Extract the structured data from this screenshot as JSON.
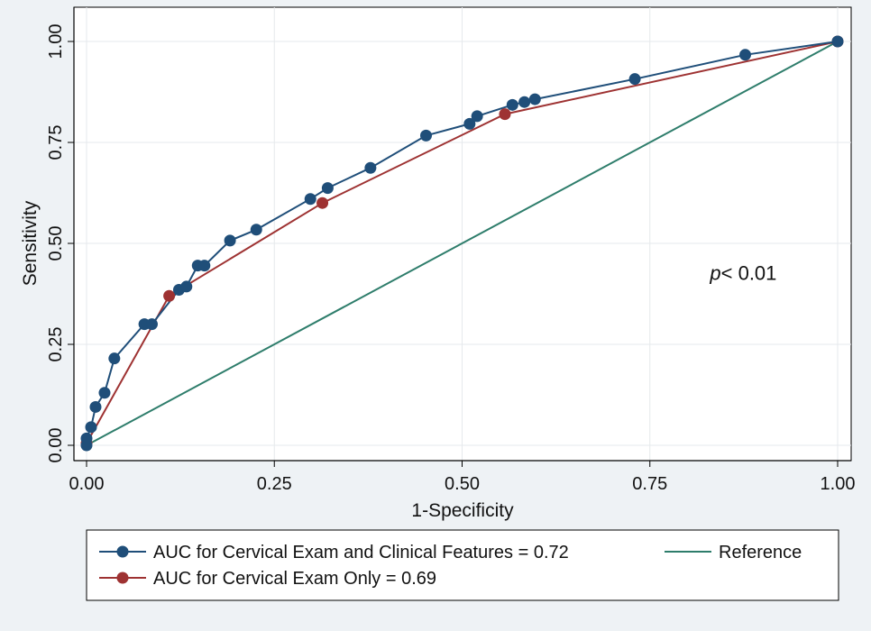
{
  "chart_data": {
    "type": "line",
    "xlabel": "1-Specificity",
    "ylabel": "Sensitivity",
    "xlim": [
      0,
      1
    ],
    "ylim": [
      0,
      1
    ],
    "xticks": [
      "0.00",
      "0.25",
      "0.50",
      "0.75",
      "1.00"
    ],
    "yticks": [
      "0.00",
      "0.25",
      "0.50",
      "0.75",
      "1.00"
    ],
    "grid": true,
    "legend_position": "bottom",
    "annotation": {
      "italic": "p",
      "text": "< 0.01",
      "x": 0.83,
      "y": 0.41
    },
    "series": [
      {
        "name": "AUC for Cervical Exam and Clinical Features = 0.72",
        "color": "#1f4e79",
        "markers": true,
        "x": [
          0.0,
          0.0,
          0.006,
          0.012,
          0.024,
          0.037,
          0.077,
          0.087,
          0.123,
          0.133,
          0.148,
          0.157,
          0.191,
          0.226,
          0.298,
          0.321,
          0.378,
          0.452,
          0.51,
          0.52,
          0.567,
          0.583,
          0.597,
          0.73,
          0.877,
          1.0
        ],
        "y": [
          0.0,
          0.017,
          0.045,
          0.095,
          0.13,
          0.215,
          0.3,
          0.3,
          0.385,
          0.393,
          0.445,
          0.445,
          0.507,
          0.534,
          0.61,
          0.637,
          0.687,
          0.767,
          0.796,
          0.815,
          0.843,
          0.85,
          0.857,
          0.907,
          0.967,
          1.0
        ]
      },
      {
        "name": "AUC for Cervical Exam Only = 0.69",
        "color": "#9e3232",
        "markers": true,
        "x": [
          0.0,
          0.11,
          0.314,
          0.557,
          1.0
        ],
        "y": [
          0.005,
          0.37,
          0.6,
          0.82,
          1.0
        ]
      },
      {
        "name": "Reference",
        "color": "#2e7d6b",
        "markers": false,
        "x": [
          0,
          1
        ],
        "y": [
          0,
          1
        ]
      }
    ]
  }
}
